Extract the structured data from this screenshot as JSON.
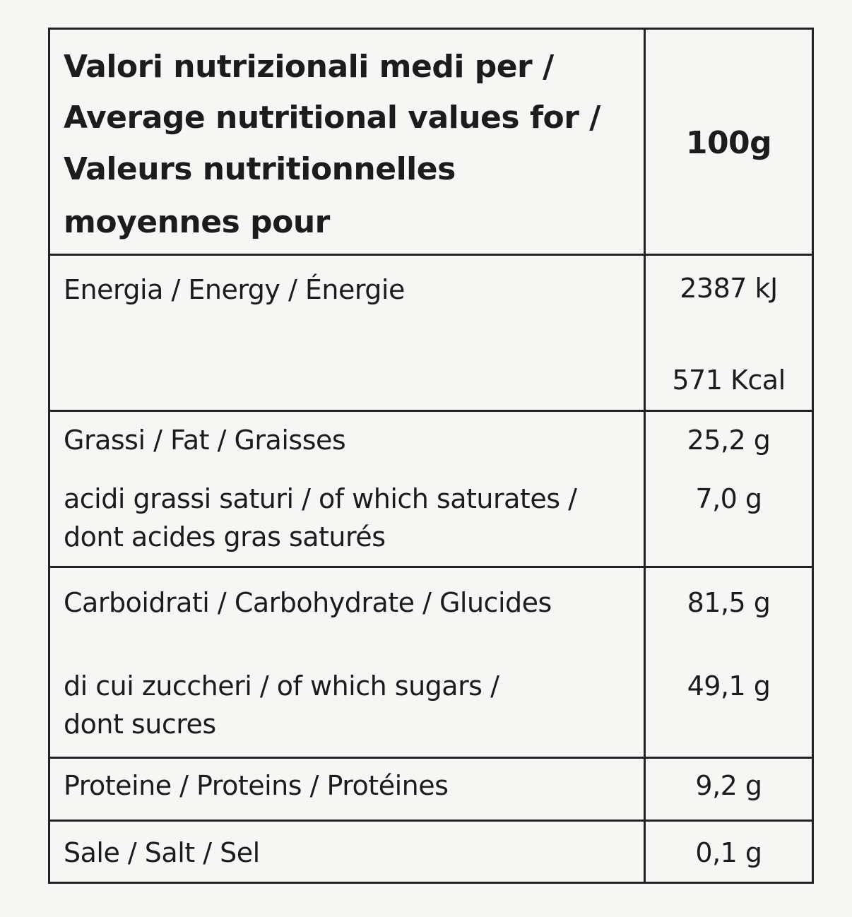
{
  "table": {
    "header": {
      "title_lines": [
        "Valori nutrizionali medi per /",
        "Average nutritional values for /",
        "Valeurs nutritionnelles",
        "moyennes pour"
      ],
      "amount": "100g"
    },
    "rows": [
      {
        "items": [
          {
            "label": [
              "Energia / Energy / Énergie"
            ],
            "values": [
              "2387 kJ",
              "571 Kcal"
            ]
          }
        ]
      },
      {
        "items": [
          {
            "label": [
              "Grassi / Fat / Graisses"
            ],
            "values": [
              "25,2 g"
            ]
          },
          {
            "label": [
              "acidi grassi saturi / of which saturates /",
              "dont acides gras saturés"
            ],
            "values": [
              "7,0 g"
            ]
          }
        ]
      },
      {
        "items": [
          {
            "label": [
              "Carboidrati / Carbohydrate / Glucides"
            ],
            "values": [
              "81,5 g"
            ]
          },
          {
            "label": [
              "di cui zuccheri / of which sugars /",
              "dont sucres"
            ],
            "values": [
              "49,1 g"
            ]
          }
        ]
      },
      {
        "items": [
          {
            "label": [
              "Proteine / Proteins / Protéines"
            ],
            "values": [
              "9,2 g"
            ]
          }
        ]
      },
      {
        "items": [
          {
            "label": [
              "Sale / Salt / Sel"
            ],
            "values": [
              "0,1 g"
            ]
          }
        ]
      }
    ]
  }
}
